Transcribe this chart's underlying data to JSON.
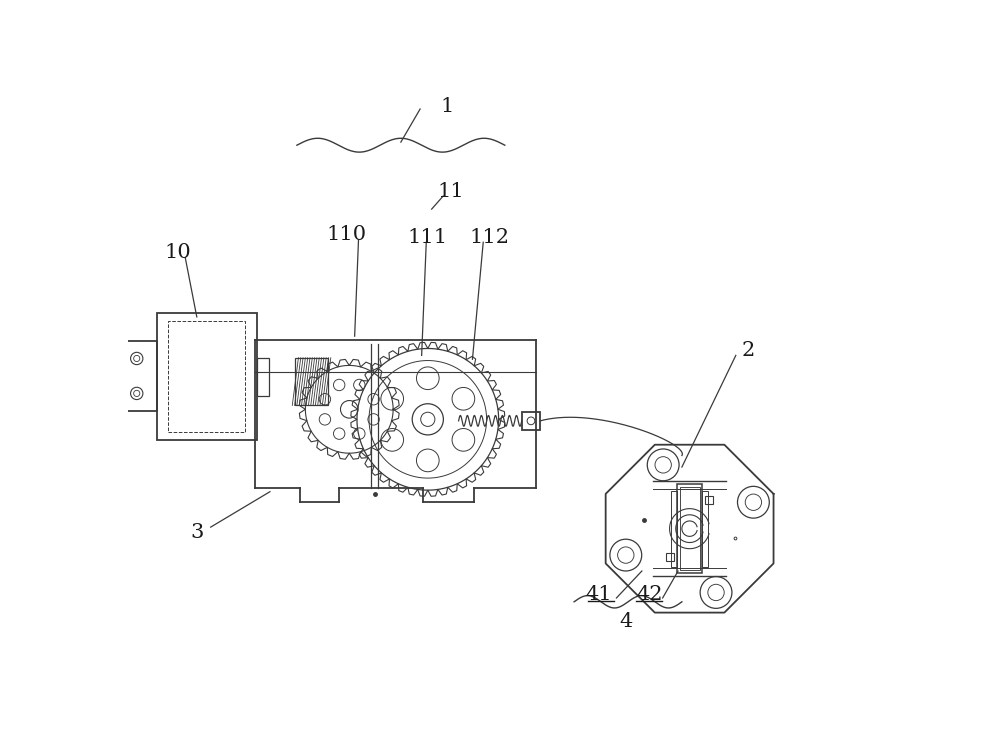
{
  "bg_color": "#ffffff",
  "line_color": "#3a3a3a",
  "label_color": "#1a1a1a",
  "fig_w": 10.0,
  "fig_h": 7.48,
  "dpi": 100
}
